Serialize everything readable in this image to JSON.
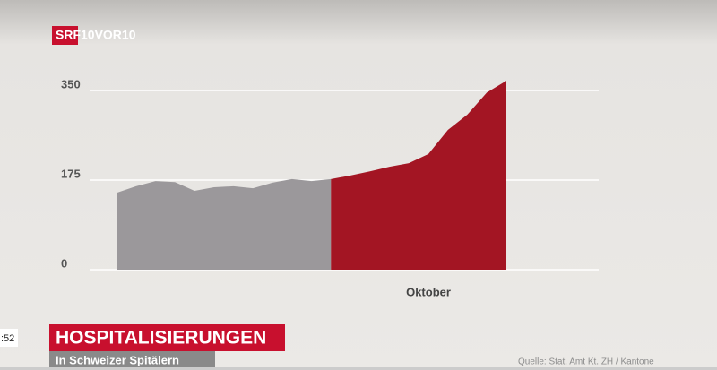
{
  "header": {
    "logo": "SRF",
    "show": "10VOR10"
  },
  "chart_data": {
    "type": "area",
    "categories": [
      null,
      null,
      null,
      null,
      null,
      null,
      null,
      null,
      null,
      null,
      null,
      null,
      null,
      null,
      null,
      null,
      "Oktober",
      null,
      null,
      null,
      null
    ],
    "series": [
      {
        "color": "#9b989b",
        "values": [
          150,
          163,
          173,
          171,
          154,
          161,
          163,
          159,
          170,
          177,
          173,
          177,
          null,
          null,
          null,
          null,
          null,
          null,
          null,
          null,
          null
        ]
      },
      {
        "color": "#a31523",
        "values": [
          null,
          null,
          null,
          null,
          null,
          null,
          null,
          null,
          null,
          null,
          null,
          177,
          184,
          192,
          201,
          208,
          226,
          273,
          303,
          346,
          369
        ]
      }
    ],
    "ylim": [
      0,
      350
    ],
    "yticks": [
      0,
      175,
      350
    ],
    "grid": true
  },
  "lower_third": {
    "title": "HOSPITALISIERUNGEN",
    "subtitle": "In Schweizer Spitälern",
    "source": "Quelle: Stat. Amt Kt. ZH / Kantone"
  },
  "player": {
    "time": ":52"
  }
}
